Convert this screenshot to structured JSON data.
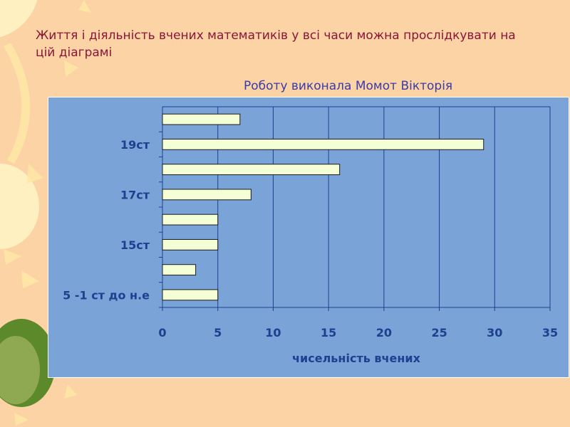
{
  "slide": {
    "heading": "Життя і діяльність вчених математиків у всі часи можна прослідкувати на цій діаграмі",
    "author": "Роботу виконала Момот Вікторія"
  },
  "colors": {
    "background": "#fbd3a5",
    "panel": "#7aa3d8",
    "bar_fill": "#f4ffd6",
    "heading_text": "#8a1538",
    "author_text": "#3a3aa8",
    "axis_text": "#1f3f8f",
    "grid": "#1f3f8f"
  },
  "chart_data": {
    "type": "bar",
    "orientation": "horizontal",
    "categories": [
      "5 -1 ст до н.е",
      "",
      "15ст",
      "",
      "17ст",
      "",
      "19ст",
      ""
    ],
    "values": [
      5,
      3,
      5,
      5,
      8,
      16,
      29,
      7
    ],
    "xlabel": "чисельність вчених",
    "xlim": [
      0,
      35
    ],
    "xticks": [
      0,
      5,
      10,
      15,
      20,
      25,
      30,
      35
    ],
    "grid": true,
    "legend": "none"
  }
}
